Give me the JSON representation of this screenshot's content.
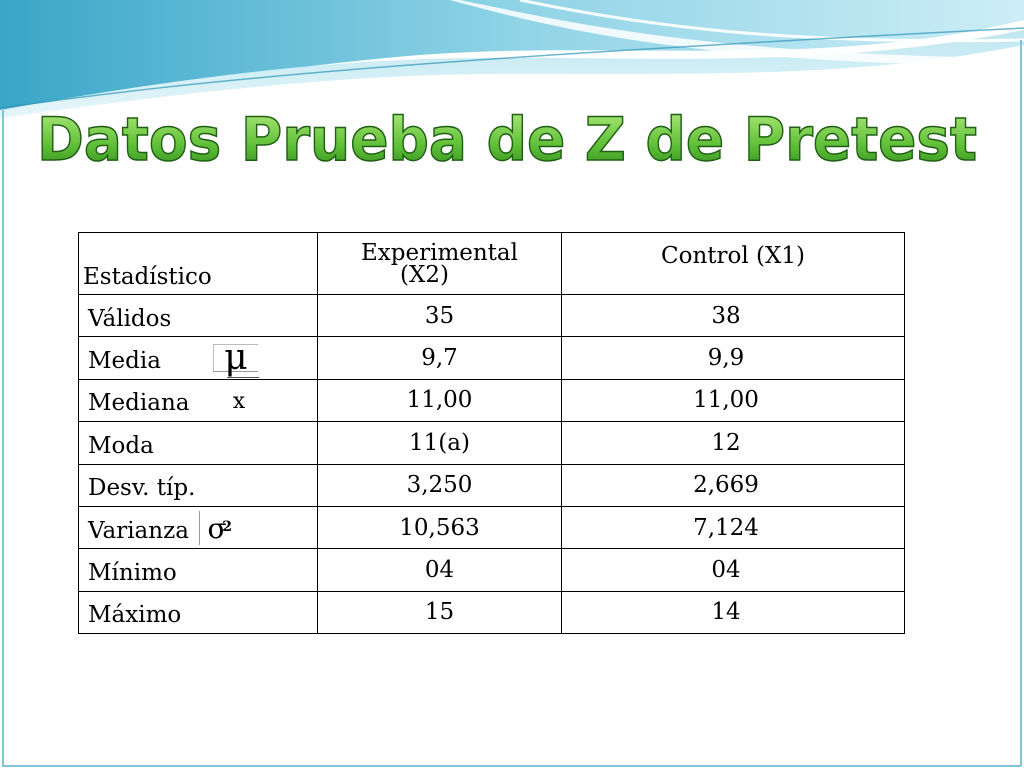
{
  "slide": {
    "title": "Datos Prueba de Z de Pretest",
    "colors": {
      "title_gradient_top": "#a8e07a",
      "title_gradient_bottom": "#2f8f1e",
      "title_outline": "#1f5f14",
      "wave_dark": "#4fb3cf",
      "wave_light": "#bfe7f1",
      "frame": "#7fc4d6"
    }
  },
  "table": {
    "headers": {
      "statistic": "Estadístico",
      "experimental_line1": "Experimental",
      "experimental_line2": "(X2)",
      "control": "Control (X1)"
    },
    "rows": [
      {
        "label": "Válidos",
        "symbol": "",
        "experimental": "35",
        "control": "38"
      },
      {
        "label": "Media",
        "symbol": "mu-icon",
        "experimental": "9,7",
        "control": "9,9"
      },
      {
        "label": "Mediana",
        "symbol": "x-bar-icon",
        "experimental": "11,00",
        "control": "11,00"
      },
      {
        "label": "Moda",
        "symbol": "",
        "experimental": "11(a)",
        "control": "12"
      },
      {
        "label": "Desv. típ.",
        "symbol": "",
        "experimental": "3,250",
        "control": "2,669"
      },
      {
        "label": "Varianza",
        "symbol": "sigma-squared-icon",
        "experimental": "10,563",
        "control": "7,124"
      },
      {
        "label": "Mínimo",
        "symbol": "",
        "experimental": "04",
        "control": "04"
      },
      {
        "label": "Máximo",
        "symbol": "",
        "experimental": "15",
        "control": "14"
      }
    ]
  }
}
